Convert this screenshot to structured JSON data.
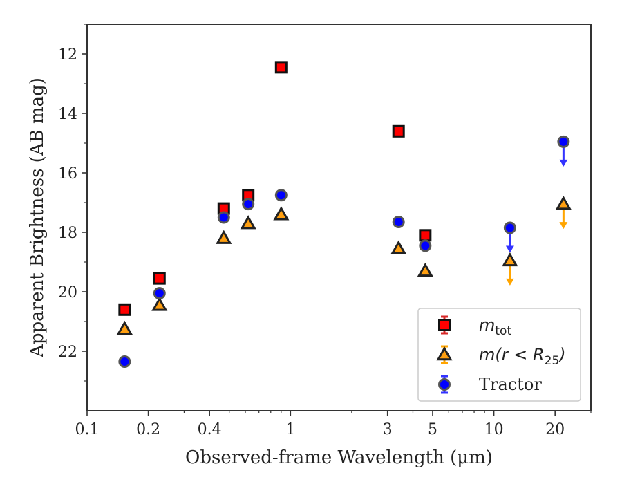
{
  "chart_data": {
    "type": "scatter",
    "xlabel": "Observed-frame Wavelength (μm)",
    "ylabel": "Apparent Brightness (AB mag)",
    "x_scale": "log",
    "xlim": [
      0.1,
      30
    ],
    "ylim": [
      24.0,
      11.0
    ],
    "y_inverted": true,
    "x_ticks": [
      0.1,
      0.2,
      0.4,
      1,
      3,
      5,
      10,
      20
    ],
    "x_tick_labels": [
      "0.1",
      "0.2",
      "0.4",
      "1",
      "3",
      "5",
      "10",
      "20"
    ],
    "y_ticks": [
      12,
      14,
      16,
      18,
      20,
      22
    ],
    "y_tick_labels": [
      "12",
      "14",
      "16",
      "18",
      "20",
      "22"
    ],
    "legend_position": "bottom-right",
    "grid": false,
    "series": [
      {
        "name": "m_tot",
        "label_main": "m",
        "label_sub": "tot",
        "marker": "square",
        "color": "#ff0000",
        "errorbar_color": "#d62728",
        "points": [
          {
            "x": 0.153,
            "y": 20.6
          },
          {
            "x": 0.227,
            "y": 19.55
          },
          {
            "x": 0.47,
            "y": 17.2
          },
          {
            "x": 0.62,
            "y": 16.75
          },
          {
            "x": 0.9,
            "y": 12.45
          },
          {
            "x": 3.4,
            "y": 14.6
          },
          {
            "x": 4.6,
            "y": 18.1
          }
        ]
      },
      {
        "name": "m(r < R25)",
        "label_main": "m(r < R",
        "label_sub": "25",
        "label_tail": ")",
        "marker": "triangle",
        "color": "#ff9f10",
        "errorbar_color": "#ffa500",
        "points": [
          {
            "x": 0.153,
            "y": 21.25
          },
          {
            "x": 0.227,
            "y": 20.45
          },
          {
            "x": 0.47,
            "y": 18.2
          },
          {
            "x": 0.62,
            "y": 17.7
          },
          {
            "x": 0.9,
            "y": 17.4
          },
          {
            "x": 3.4,
            "y": 18.55
          },
          {
            "x": 4.6,
            "y": 19.3
          },
          {
            "x": 12.0,
            "y": 18.95,
            "upper_limit": true
          },
          {
            "x": 22.0,
            "y": 17.05,
            "upper_limit": true
          }
        ]
      },
      {
        "name": "Tractor",
        "label_main": "Tractor",
        "marker": "circle",
        "color": "#0000ff",
        "errorbar_color": "#3333ff",
        "points": [
          {
            "x": 0.153,
            "y": 22.35
          },
          {
            "x": 0.227,
            "y": 20.05
          },
          {
            "x": 0.47,
            "y": 17.5
          },
          {
            "x": 0.62,
            "y": 17.05
          },
          {
            "x": 0.9,
            "y": 16.75
          },
          {
            "x": 3.4,
            "y": 17.65
          },
          {
            "x": 4.6,
            "y": 18.45
          },
          {
            "x": 12.0,
            "y": 17.85,
            "upper_limit": true
          },
          {
            "x": 22.0,
            "y": 14.95,
            "upper_limit": true
          }
        ]
      }
    ]
  }
}
